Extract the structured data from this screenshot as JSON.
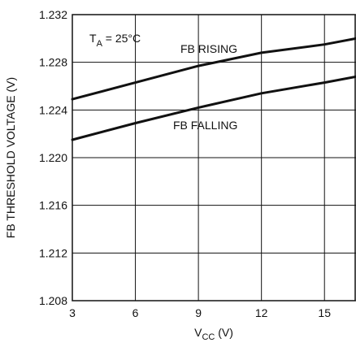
{
  "chart_data": {
    "type": "line",
    "xlabel": {
      "main": "V",
      "sub": "CC",
      "tail": " (V)"
    },
    "ylabel": "FB THRESHOLD VOLTAGE (V)",
    "xlim": [
      3,
      16.5
    ],
    "ylim": [
      1.208,
      1.232
    ],
    "x_ticks": [
      3,
      6,
      9,
      12,
      15
    ],
    "y_ticks": [
      1.208,
      1.212,
      1.216,
      1.22,
      1.224,
      1.228,
      1.232
    ],
    "x_tick_labels": [
      "3",
      "6",
      "9",
      "12",
      "15"
    ],
    "y_tick_labels": [
      "1.208",
      "1.212",
      "1.216",
      "1.220",
      "1.224",
      "1.228",
      "1.232"
    ],
    "grid": true,
    "annotation": {
      "main": "T",
      "sub": "A",
      "tail": " = 25°C"
    },
    "series": [
      {
        "name": "FB RISING",
        "x": [
          3,
          6,
          9,
          12,
          15,
          16.5
        ],
        "y": [
          1.2249,
          1.2263,
          1.2277,
          1.2288,
          1.2295,
          1.23
        ]
      },
      {
        "name": "FB FALLING",
        "x": [
          3,
          6,
          9,
          12,
          15,
          16.5
        ],
        "y": [
          1.2215,
          1.2229,
          1.2242,
          1.2254,
          1.2263,
          1.2268
        ]
      }
    ]
  }
}
